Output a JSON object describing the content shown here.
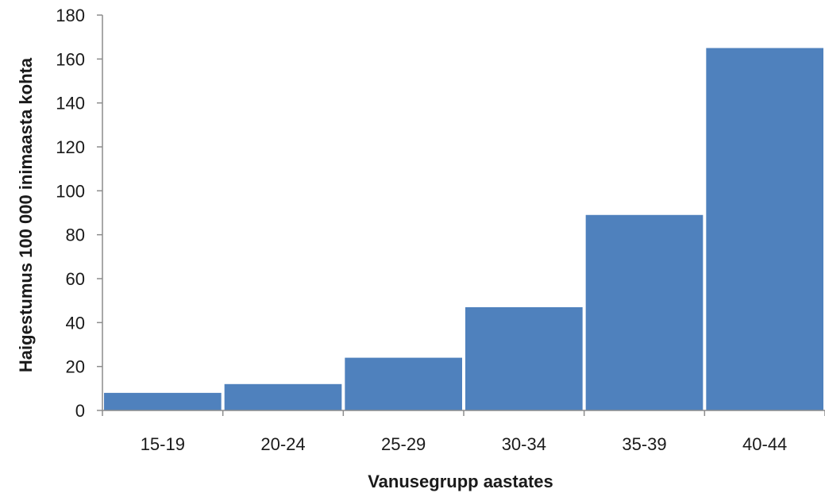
{
  "chart_data": {
    "type": "bar",
    "title": "",
    "categories": [
      "15-19",
      "20-24",
      "25-29",
      "30-34",
      "35-39",
      "40-44"
    ],
    "values": [
      8,
      12,
      24,
      47,
      89,
      165
    ],
    "xlabel": "Vanusegrupp aastates",
    "ylabel": "Haigestumus 100 000 inimaasta kohta",
    "ylim": [
      0,
      180
    ],
    "yticks": [
      "0",
      "20",
      "40",
      "60",
      "80",
      "100",
      "120",
      "140",
      "160",
      "180"
    ],
    "grid": false,
    "legend": "none",
    "bar_color": "#4f81bd",
    "axis_color": "#8c8c8c"
  }
}
